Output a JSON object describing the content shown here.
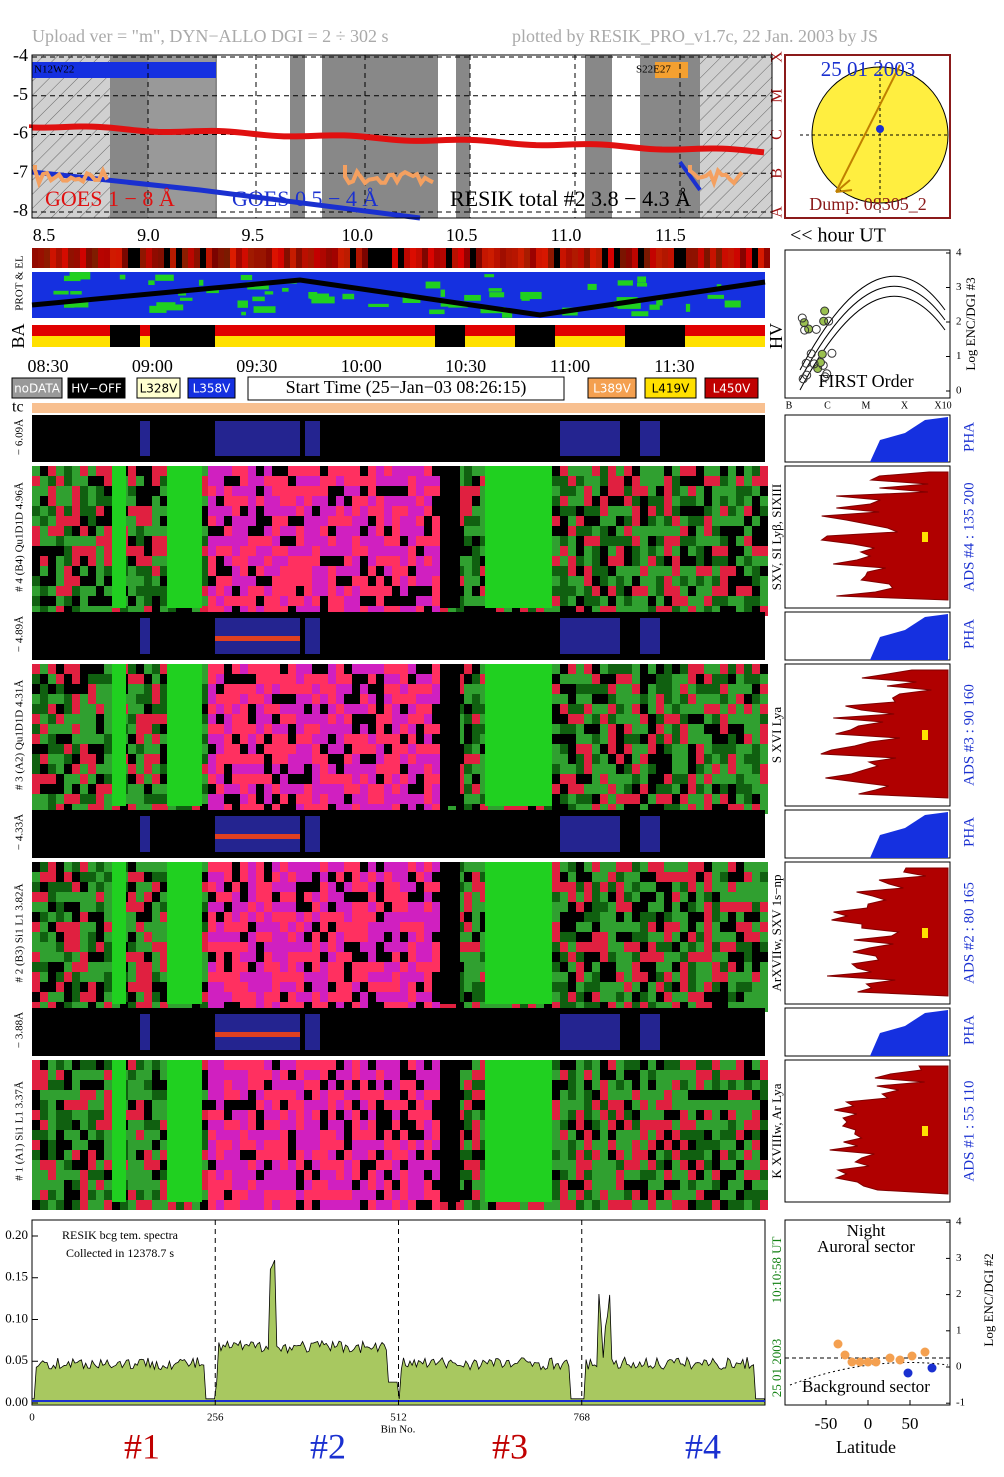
{
  "header": {
    "upload": "Upload ver = \"m\", DYN−ALLO DGI =   2 ÷ 302 s",
    "plotted": "plotted by RESIK_PRO_v1.7c, 22 Jan. 2003 by JS"
  },
  "goes": {
    "yticks": [
      -4,
      -5,
      -6,
      -7,
      -8
    ],
    "classes": [
      "A",
      "B",
      "C",
      "M",
      "X"
    ],
    "regions": [
      "N12W22",
      "S22E27"
    ],
    "legend": [
      "GOES 1 − 8 Å",
      "GOES 0.5 − 4 Å",
      "RESIK total #2  3.8 − 4.3 Å"
    ]
  },
  "sun": {
    "date": "25 01 2003",
    "dump": "Dump: 08305_2"
  },
  "hour_axis": {
    "ticks": [
      "8.5",
      "9.0",
      "9.5",
      "10.0",
      "10.5",
      "11.0",
      "11.5"
    ],
    "label": "<< hour UT"
  },
  "strips": {
    "prot": "PROT & EL",
    "ba": "BA",
    "hv": "HV"
  },
  "time_ticks": [
    "08:30",
    "09:00",
    "09:30",
    "10:00",
    "10:30",
    "11:00",
    "11:30"
  ],
  "legend": {
    "left": [
      "noDATA",
      "HV−OFF",
      "L328V",
      "L358V"
    ],
    "start_time": "Start Time (25−Jan−03 08:26:15)",
    "right": [
      "L389V",
      "L419V",
      "L450V"
    ],
    "tc": "tc"
  },
  "order_panel": {
    "yticks": [
      0,
      1,
      2,
      3,
      4
    ],
    "ylabel": "Log ENC/DGI #3",
    "xlabels": [
      "B",
      "C",
      "M",
      "X",
      "X10"
    ],
    "title": "FIRST Order"
  },
  "detectors": [
    {
      "main_label": "# 4 (B4) Qu1D1D 4.96Å",
      "pha_label": "− 6.09Å",
      "pha": "PHA",
      "ads": "ADS #4 :   135 200",
      "lines": "SXV, SI Lyβ, SIXIII"
    },
    {
      "main_label": "# 3 (A2) Qu1D1D 4.31Å",
      "pha_label": "− 4.89Å",
      "pha": "PHA",
      "ads": "ADS #3 :   90 160",
      "lines": "S XVI Lya"
    },
    {
      "main_label": "# 2 (B3) Si1 L1 3.82Å",
      "pha_label": "− 4.33Å",
      "pha": "PHA",
      "ads": "ADS #2 :   80 165",
      "lines": "ArXVIIw, SXV 1s−np"
    },
    {
      "main_label": "# 1 (A1) Si1 L1 3.37Å",
      "pha_label": "− 3.88Å",
      "pha": "PHA",
      "ads": "ADS #1 :   55 110",
      "lines": "K XVIIIw, Ar Lya"
    }
  ],
  "spectrum": {
    "yticks": [
      {
        "value": 0,
        "label": "0.00"
      },
      {
        "value": 0.05,
        "label": "0.05"
      },
      {
        "value": 0.1,
        "label": "0.10"
      },
      {
        "value": 0.15,
        "label": "0.15"
      },
      {
        "value": 0.2,
        "label": "0.20"
      }
    ],
    "note1": "RESIK bcg tem. spectra",
    "note2": "Collected in 12378.7 s",
    "xticks": [
      0,
      256,
      512,
      768
    ],
    "xlabel": "Bin No.",
    "sections": [
      "#1",
      "#2",
      "#3",
      "#4"
    ],
    "date": "25 01 2003",
    "time": "10:10:58 UT"
  },
  "latitude": {
    "title1": "Night",
    "title2": "Auroral sector",
    "bottom": "Background sector",
    "xticks": [
      -50,
      0,
      50
    ],
    "xlabel": "Latitude",
    "yticks": [
      -1,
      0,
      1,
      2,
      3,
      4
    ],
    "ylabel": "Log ENC/DGI #2"
  }
}
